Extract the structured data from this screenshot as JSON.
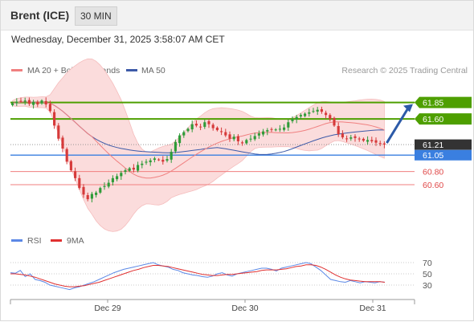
{
  "header": {
    "symbol": "Brent (ICE)",
    "timeframe": "30 MIN",
    "datetime": "Wednesday, December 31, 2025 3:58:07 AM CET"
  },
  "legend": {
    "ma20": "MA 20 + Bollinger Bands",
    "ma50": "MA 50",
    "copyright": "Research © 2025 Trading Central",
    "rsi": "RSI",
    "rsi_ma": "9MA"
  },
  "colors": {
    "up_candle": "#2e9b38",
    "down_candle": "#d63a3a",
    "bollinger_fill": "#fbdcdc",
    "ma20": "#f08080",
    "ma50": "#3d5aa8",
    "resistance": "#4e9f00",
    "current": "#333333",
    "pivot": "#3a7fe0",
    "support": "#f07f7f",
    "rsi": "#5b88e6",
    "rsi_ma": "#e03030",
    "arrow": "#2c5aa8"
  },
  "chart_data": [
    {
      "type": "candlestick",
      "title": "Brent (ICE)",
      "timeframe": "30 MIN",
      "ylim": [
        60.1,
        62.2
      ],
      "x_ticks": [
        "Dec 29",
        "Dec 30",
        "Dec 31"
      ],
      "levels": [
        {
          "label": "61.85",
          "value": 61.85,
          "kind": "resistance"
        },
        {
          "label": "61.60",
          "value": 61.6,
          "kind": "resistance"
        },
        {
          "label": "61.21",
          "value": 61.21,
          "kind": "current"
        },
        {
          "label": "61.05",
          "value": 61.05,
          "kind": "pivot"
        },
        {
          "label": "60.80",
          "value": 60.8,
          "kind": "support"
        },
        {
          "label": "60.60",
          "value": 60.6,
          "kind": "support"
        }
      ],
      "series": [
        {
          "name": "MA 20 + Bollinger Bands",
          "values": []
        },
        {
          "name": "MA 50",
          "values": []
        }
      ],
      "close": [
        61.84,
        61.86,
        61.87,
        61.88,
        61.83,
        61.86,
        61.82,
        61.88,
        61.82,
        61.72,
        61.5,
        61.3,
        61.15,
        60.95,
        60.82,
        60.7,
        60.55,
        60.45,
        60.38,
        60.46,
        60.48,
        60.55,
        60.58,
        60.63,
        60.7,
        60.73,
        60.78,
        60.82,
        60.85,
        60.83,
        60.9,
        60.92,
        60.95,
        60.97,
        61.0,
        60.98,
        60.95,
        60.99,
        61.1,
        61.25,
        61.35,
        61.4,
        61.45,
        61.52,
        61.5,
        61.48,
        61.55,
        61.52,
        61.46,
        61.43,
        61.4,
        61.35,
        61.3,
        61.33,
        61.26,
        61.23,
        61.28,
        61.3,
        61.34,
        61.38,
        61.41,
        61.43,
        61.44,
        61.44,
        61.45,
        61.47,
        61.55,
        61.6,
        61.63,
        61.66,
        61.68,
        61.7,
        61.72,
        61.74,
        61.71,
        61.66,
        61.6,
        61.5,
        61.37,
        61.32,
        61.3,
        61.32,
        61.31,
        61.29,
        61.27,
        61.28,
        61.26,
        61.24,
        61.22,
        61.21
      ],
      "annotation": "projected arrow up toward 61.85"
    },
    {
      "type": "line",
      "title": "RSI",
      "ylim": [
        10,
        90
      ],
      "y_ticks": [
        30,
        50,
        70
      ],
      "series": [
        {
          "name": "RSI",
          "values": [
            52,
            51,
            56,
            45,
            50,
            40,
            38,
            35,
            30,
            28,
            26,
            24,
            22,
            25,
            27,
            30,
            33,
            36,
            40,
            44,
            48,
            52,
            55,
            58,
            60,
            62,
            64,
            66,
            68,
            70,
            66,
            64,
            62,
            58,
            56,
            52,
            50,
            48,
            47,
            45,
            44,
            46,
            50,
            52,
            48,
            46,
            50,
            52,
            54,
            56,
            58,
            60,
            60,
            58,
            55,
            60,
            62,
            64,
            66,
            68,
            70,
            68,
            62,
            56,
            48,
            40,
            38,
            36,
            35,
            38,
            36,
            34,
            36,
            35,
            34,
            36,
            35
          ]
        },
        {
          "name": "9MA",
          "values": [
            50,
            50,
            49,
            48,
            46,
            44,
            41,
            38,
            35,
            32,
            30,
            28,
            27,
            27,
            28,
            29,
            31,
            33,
            35,
            38,
            41,
            44,
            47,
            50,
            53,
            56,
            58,
            61,
            63,
            65,
            65,
            64,
            63,
            61,
            59,
            57,
            55,
            53,
            51,
            49,
            48,
            47,
            47,
            48,
            49,
            49,
            50,
            51,
            52,
            53,
            54,
            56,
            57,
            57,
            57,
            58,
            59,
            61,
            63,
            64,
            66,
            66,
            65,
            62,
            58,
            53,
            48,
            44,
            41,
            39,
            38,
            37,
            36,
            36,
            36,
            36,
            35
          ]
        }
      ]
    }
  ]
}
